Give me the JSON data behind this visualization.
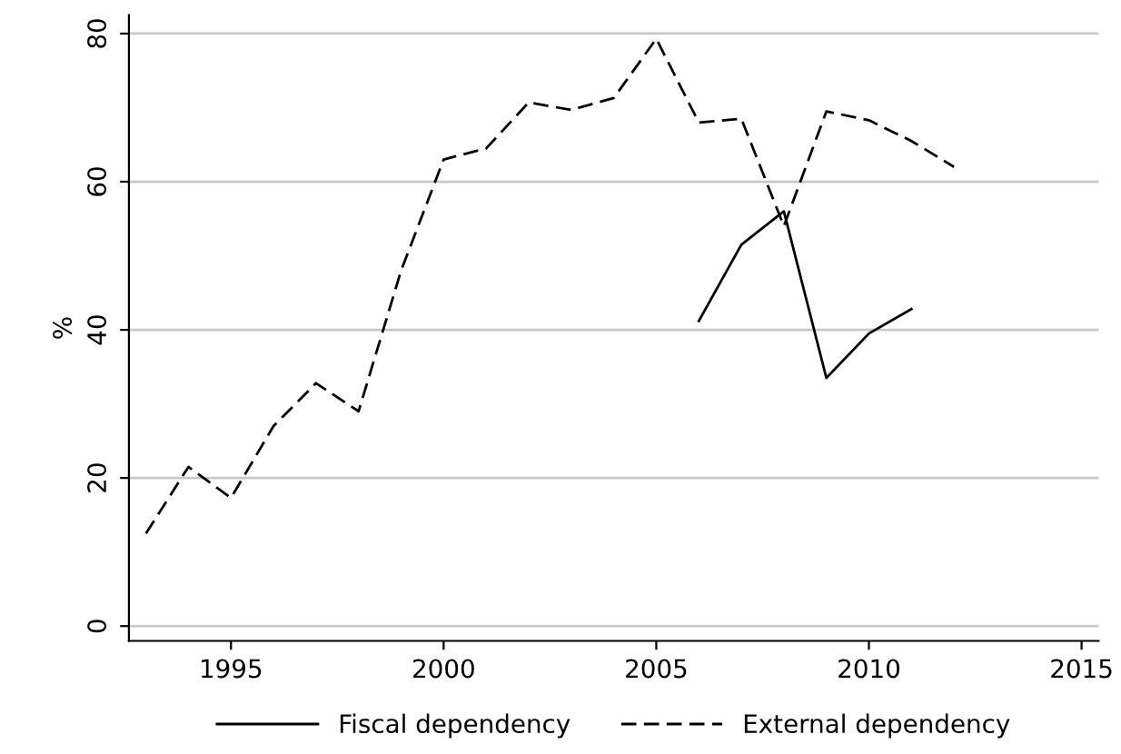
{
  "chart_data": {
    "type": "line",
    "ylabel": "%",
    "x": [
      1993,
      1994,
      1995,
      1996,
      1997,
      1998,
      1999,
      2000,
      2001,
      2002,
      2003,
      2004,
      2005,
      2006,
      2007,
      2008,
      2009,
      2010,
      2011,
      2012
    ],
    "series": [
      {
        "name": "Fiscal dependency",
        "color": "#000000",
        "line_style": "solid",
        "values": [
          null,
          null,
          null,
          null,
          null,
          null,
          null,
          null,
          null,
          null,
          null,
          null,
          null,
          41.2,
          51.5,
          56,
          33.5,
          39.5,
          42.8,
          null
        ]
      },
      {
        "name": "External dependency",
        "color": "#000000",
        "line_style": "dashed",
        "values": [
          12.5,
          21.5,
          17.3,
          27,
          32.8,
          29,
          48,
          63,
          64.5,
          70.7,
          69.7,
          71.3,
          79.3,
          68,
          68.5,
          54,
          69.5,
          68.3,
          65.5,
          62
        ]
      }
    ],
    "xlim": [
      1992.6,
      2015.4
    ],
    "xticks": [
      1995,
      2000,
      2005,
      2010,
      2015
    ],
    "ylim": [
      -2,
      82.5
    ],
    "yticks": [
      0,
      20,
      40,
      60,
      80
    ],
    "grid": "y",
    "legend": "bottom"
  }
}
